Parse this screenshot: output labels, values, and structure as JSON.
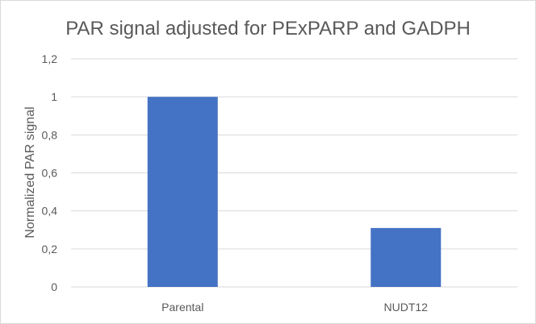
{
  "chart_data": {
    "type": "bar",
    "title": "PAR signal adjusted for PExPARP and GADPH",
    "xlabel": "",
    "ylabel": "Normalized PAR signal",
    "categories": [
      "Parental",
      "NUDT12"
    ],
    "values": [
      1.0,
      0.31
    ],
    "ylim": [
      0,
      1.2
    ],
    "yticks": [
      "0",
      "0,2",
      "0,4",
      "0,6",
      "0,8",
      "1",
      "1,2"
    ],
    "grid": true,
    "legend": "none",
    "bar_color": "#4472c4",
    "grid_color": "#d9d9d9",
    "text_color": "#595959"
  }
}
